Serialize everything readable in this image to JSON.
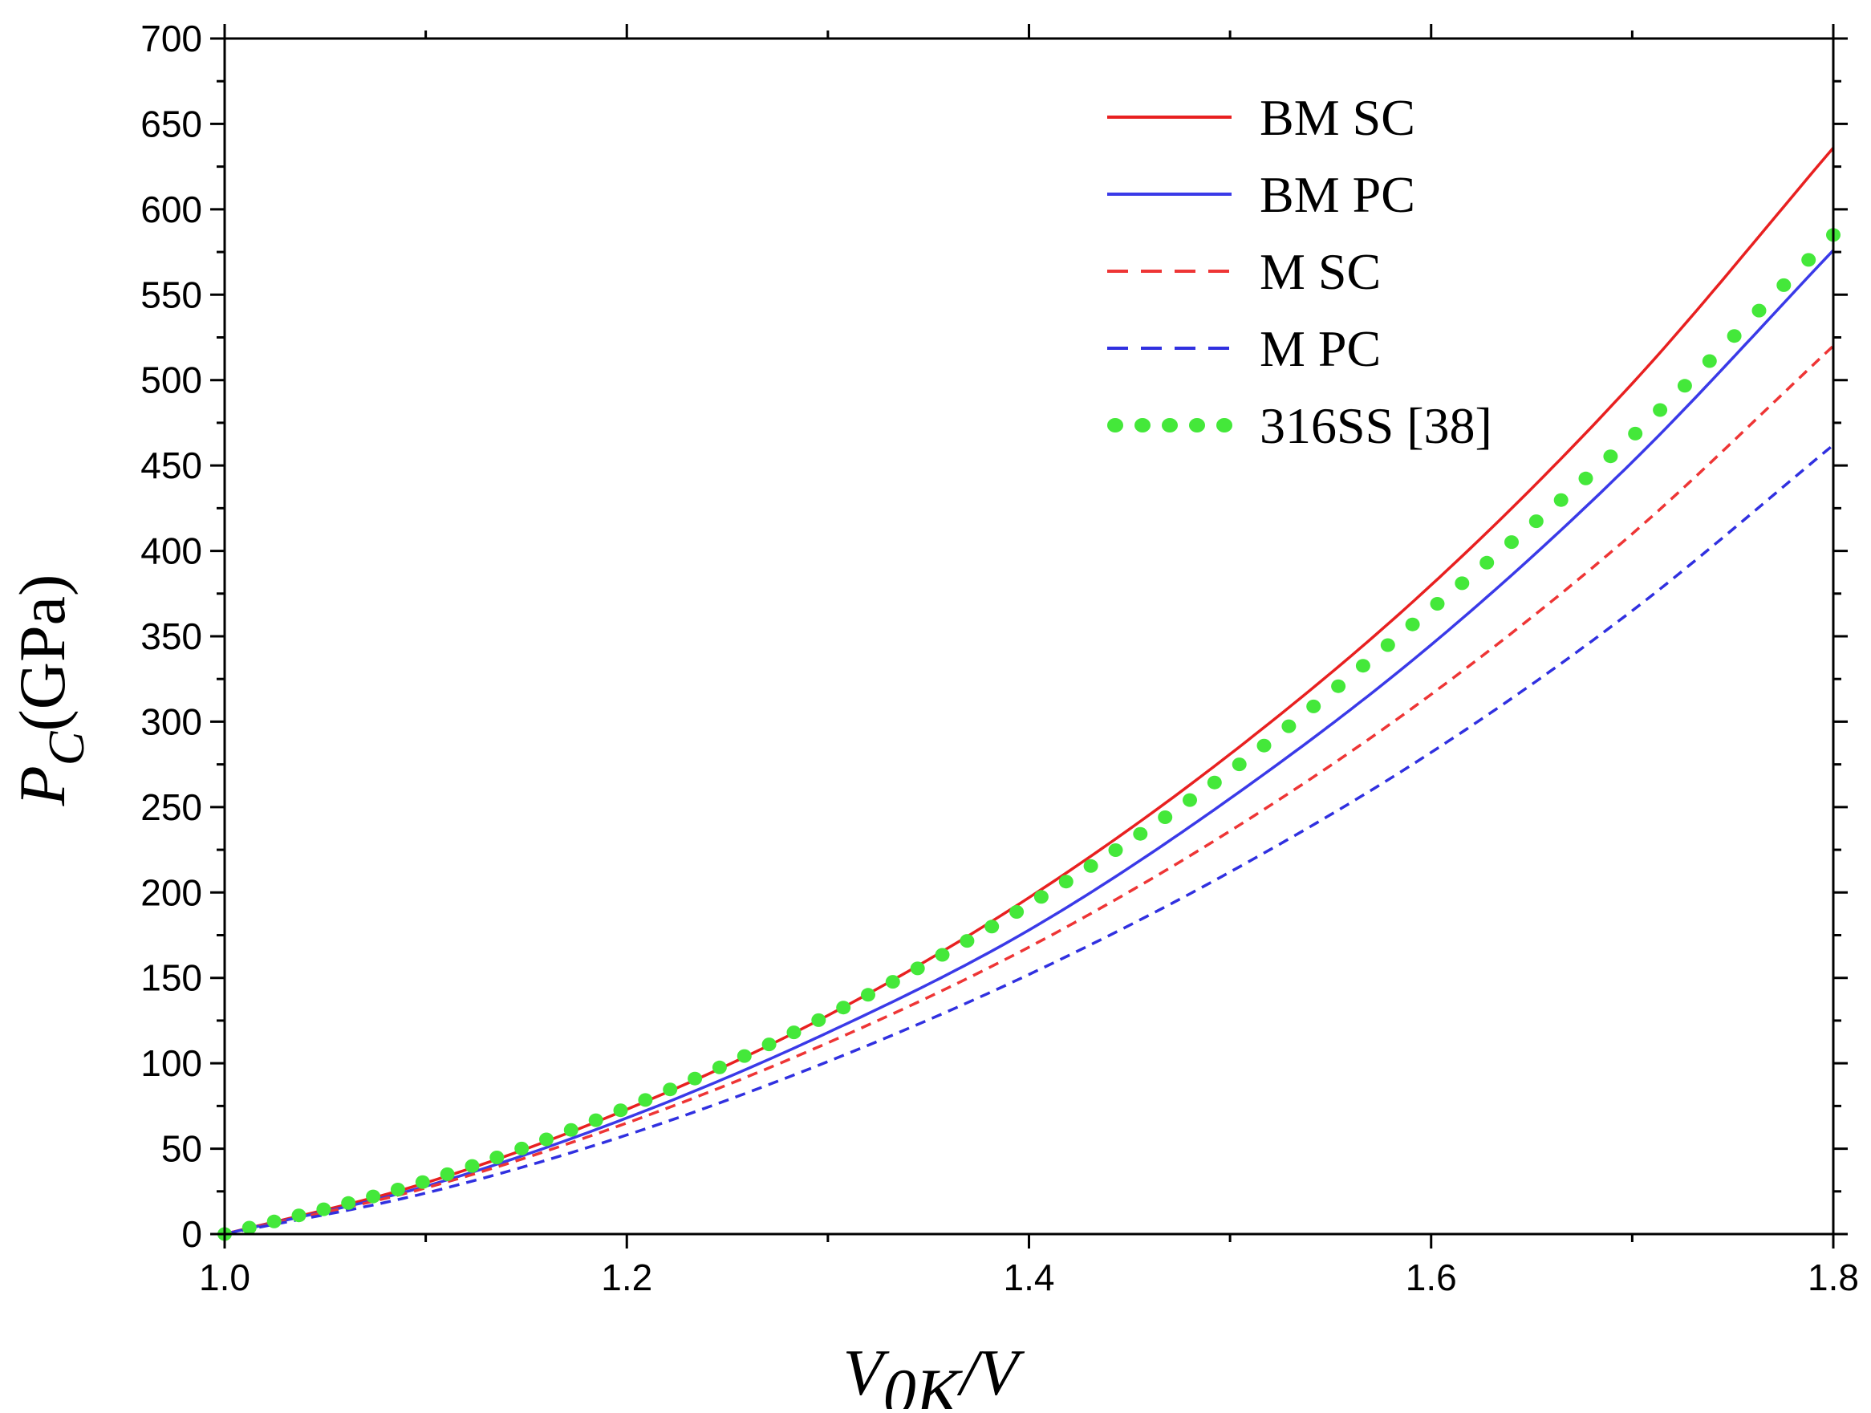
{
  "chart_data": {
    "type": "line",
    "title": "",
    "xlabel": {
      "main": "V",
      "sub": "0K",
      "suffix": "/V"
    },
    "ylabel": {
      "main": "P",
      "sub": "C",
      "suffix": "(GPa)"
    },
    "xlim": [
      1.0,
      1.8
    ],
    "ylim": [
      0,
      700
    ],
    "x_ticks": [
      1.0,
      1.2,
      1.4,
      1.6,
      1.8
    ],
    "x_tick_labels": [
      "1.0",
      "1.2",
      "1.4",
      "1.6",
      "1.8"
    ],
    "y_ticks": [
      0,
      50,
      100,
      150,
      200,
      250,
      300,
      350,
      400,
      450,
      500,
      550,
      600,
      650,
      700
    ],
    "y_tick_labels": [
      "0",
      "50",
      "100",
      "150",
      "200",
      "250",
      "300",
      "350",
      "400",
      "450",
      "500",
      "550",
      "600",
      "650",
      "700"
    ],
    "grid": false,
    "legend_position": "top-right",
    "x": [
      1.0,
      1.1,
      1.2,
      1.3,
      1.4,
      1.5,
      1.6,
      1.7,
      1.8
    ],
    "series": [
      {
        "name": "BM SC",
        "style": "solid",
        "color": "#e82020",
        "values": [
          0,
          30,
          73,
          128,
          197,
          281,
          380,
          498,
          636
        ]
      },
      {
        "name": "BM PC",
        "style": "solid",
        "color": "#3a3ae8",
        "values": [
          0,
          28,
          68,
          118,
          178,
          255,
          345,
          452,
          576
        ]
      },
      {
        "name": "M SC",
        "style": "dashed",
        "color": "#ee3535",
        "values": [
          0,
          27,
          65,
          112,
          168,
          236,
          316,
          410,
          520
        ]
      },
      {
        "name": "M PC",
        "style": "dashed",
        "color": "#3030e0",
        "values": [
          0,
          24,
          58,
          101,
          152,
          212,
          282,
          365,
          462
        ]
      },
      {
        "name": "316SS [38]",
        "style": "dotted",
        "color": "#44e83a",
        "values": [
          0,
          31,
          74,
          128,
          193,
          271,
          366,
          467,
          585
        ]
      }
    ]
  }
}
